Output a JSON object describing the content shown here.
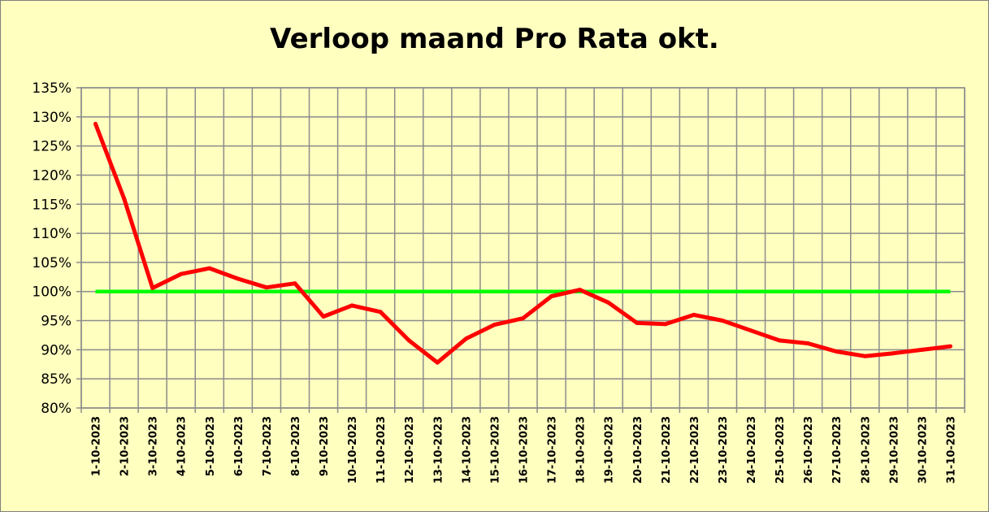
{
  "chart_data": {
    "type": "line",
    "title": "Verloop maand Pro Rata okt.",
    "xlabel": "",
    "ylabel": "",
    "ylim": [
      80,
      135
    ],
    "y_ticks": [
      "80%",
      "85%",
      "90%",
      "95%",
      "100%",
      "105%",
      "110%",
      "115%",
      "120%",
      "125%",
      "130%",
      "135%"
    ],
    "categories": [
      "1-10-2023",
      "2-10-2023",
      "3-10-2023",
      "4-10-2023",
      "5-10-2023",
      "6-10-2023",
      "7-10-2023",
      "8-10-2023",
      "9-10-2023",
      "10-10-2023",
      "11-10-2023",
      "12-10-2023",
      "13-10-2023",
      "14-10-2023",
      "15-10-2023",
      "16-10-2023",
      "17-10-2023",
      "18-10-2023",
      "19-10-2023",
      "20-10-2023",
      "21-10-2023",
      "22-10-2023",
      "23-10-2023",
      "24-10-2023",
      "25-10-2023",
      "26-10-2023",
      "27-10-2023",
      "28-10-2023",
      "29-10-2023",
      "30-10-2023",
      "31-10-2023"
    ],
    "series": [
      {
        "color": "#ff0000",
        "values": [
          128.8,
          116.0,
          100.6,
          103.0,
          104.0,
          102.2,
          100.7,
          101.4,
          95.7,
          97.6,
          96.5,
          91.6,
          87.8,
          91.9,
          94.3,
          95.4,
          99.2,
          100.3,
          98.1,
          94.6,
          94.4,
          96.0,
          95.0,
          93.3,
          91.6,
          91.1,
          89.7,
          88.9,
          89.4,
          90.0,
          90.6
        ]
      },
      {
        "color": "#00ff00",
        "values": [
          100,
          100,
          100,
          100,
          100,
          100,
          100,
          100,
          100,
          100,
          100,
          100,
          100,
          100,
          100,
          100,
          100,
          100,
          100,
          100,
          100,
          100,
          100,
          100,
          100,
          100,
          100,
          100,
          100,
          100,
          100
        ]
      }
    ],
    "grid": true,
    "legend": "none"
  }
}
